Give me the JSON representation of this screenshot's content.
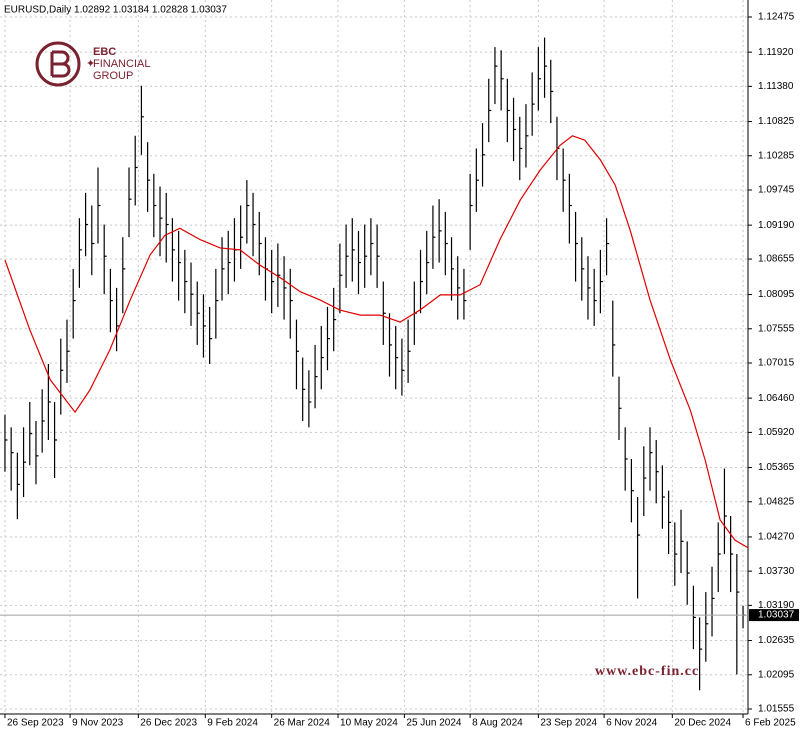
{
  "chart_data": {
    "type": "ohlc",
    "title": "EURUSD,Daily  1.02892 1.03184 1.02828 1.03037",
    "color": "#000000",
    "xlim": [
      -0.8,
      119.8
    ],
    "ylim": [
      1.01476,
      1.12743
    ],
    "grid": true,
    "xticks": [
      {
        "value": 0,
        "label": "26 Sep 2023"
      },
      {
        "value": 10.5,
        "label": "9 Nov 2023"
      },
      {
        "value": 21.5,
        "label": "26 Dec 2023"
      },
      {
        "value": 32.3,
        "label": "9 Feb 2024"
      },
      {
        "value": 43,
        "label": "26 Mar 2024"
      },
      {
        "value": 53.7,
        "label": "10 May 2024"
      },
      {
        "value": 64.4,
        "label": "25 Jun 2024"
      },
      {
        "value": 75,
        "label": "8 Aug 2024"
      },
      {
        "value": 86,
        "label": "23 Sep 2024"
      },
      {
        "value": 96.6,
        "label": "6 Nov 2024"
      },
      {
        "value": 107.6,
        "label": "20 Dec 2024"
      },
      {
        "value": 119,
        "label": "6 Feb 2025"
      }
    ],
    "yticks": [
      1.12475,
      {
        "value": 1.1192,
        "label": "1.11920"
      },
      {
        "value": 1.1138,
        "label": "1.11380"
      },
      1.10825,
      1.10285,
      1.09745,
      {
        "value": 1.0919,
        "label": "1.09190"
      },
      1.08655,
      1.08095,
      1.07555,
      1.07015,
      {
        "value": 1.0646,
        "label": "1.06460"
      },
      {
        "value": 1.0592,
        "label": "1.05920"
      },
      1.05365,
      1.04825,
      {
        "value": 1.0427,
        "label": "1.04270"
      },
      {
        "value": 1.0373,
        "label": "1.03730"
      },
      {
        "value": 1.0319,
        "label": "1.03190"
      },
      1.02635,
      1.02095,
      1.01555
    ],
    "high": [
      1.062,
      1.06,
      1.056,
      1.06,
      1.064,
      1.061,
      1.066,
      1.07,
      1.064,
      1.074,
      1.077,
      1.085,
      1.093,
      1.097,
      1.095,
      1.101,
      1.092,
      1.085,
      1.082,
      1.09,
      1.101,
      1.106,
      1.1139,
      1.105,
      1.1,
      1.098,
      1.097,
      1.093,
      1.091,
      1.088,
      1.086,
      1.083,
      1.081,
      1.079,
      1.085,
      1.09,
      1.091,
      1.093,
      1.095,
      1.099,
      1.097,
      1.094,
      1.09,
      1.088,
      1.089,
      1.087,
      1.085,
      1.077,
      1.071,
      1.069,
      1.073,
      1.076,
      1.079,
      1.082,
      1.089,
      1.092,
      1.093,
      1.091,
      1.092,
      1.093,
      1.092,
      1.083,
      1.078,
      1.076,
      1.074,
      1.077,
      1.083,
      1.088,
      1.091,
      1.095,
      1.096,
      1.094,
      1.09,
      1.087,
      1.085,
      1.1,
      1.104,
      1.108,
      1.115,
      1.12,
      1.1195,
      1.115,
      1.112,
      1.109,
      1.111,
      1.116,
      1.12,
      1.1215,
      1.118,
      1.109,
      1.104,
      1.1,
      1.094,
      1.09,
      1.087,
      1.085,
      1.088,
      1.093,
      1.08,
      1.068,
      1.06,
      1.055,
      1.049,
      1.057,
      1.06,
      1.058,
      1.054,
      1.05,
      1.045,
      1.047,
      1.042,
      1.035,
      1.03,
      1.034,
      1.038,
      1.045,
      1.0535,
      1.046,
      1.04,
      1.03184
    ],
    "low": [
      1.053,
      1.05,
      1.0455,
      1.049,
      1.054,
      1.051,
      1.056,
      1.058,
      1.052,
      1.062,
      1.067,
      1.074,
      1.082,
      1.087,
      1.084,
      1.089,
      1.081,
      1.075,
      1.072,
      1.078,
      1.09,
      1.095,
      1.103,
      1.094,
      1.09,
      1.087,
      1.086,
      1.083,
      1.08,
      1.078,
      1.076,
      1.073,
      1.071,
      1.07,
      1.074,
      1.08,
      1.081,
      1.083,
      1.085,
      1.089,
      1.087,
      1.084,
      1.08,
      1.078,
      1.079,
      1.077,
      1.074,
      1.066,
      1.061,
      1.06,
      1.063,
      1.066,
      1.069,
      1.072,
      1.078,
      1.082,
      1.083,
      1.081,
      1.082,
      1.084,
      1.082,
      1.073,
      1.068,
      1.066,
      1.065,
      1.067,
      1.073,
      1.078,
      1.081,
      1.085,
      1.086,
      1.084,
      1.08,
      1.077,
      1.077,
      1.088,
      1.094,
      1.098,
      1.105,
      1.111,
      1.11,
      1.105,
      1.102,
      1.099,
      1.101,
      1.106,
      1.11,
      1.112,
      1.108,
      1.099,
      1.094,
      1.089,
      1.083,
      1.08,
      1.077,
      1.076,
      1.078,
      1.084,
      1.068,
      1.058,
      1.05,
      1.045,
      1.033,
      1.046,
      1.05,
      1.048,
      1.044,
      1.04,
      1.035,
      1.037,
      1.032,
      1.025,
      1.0185,
      1.023,
      1.027,
      1.034,
      1.04,
      1.034,
      1.021,
      1.02828
    ],
    "close": [
      1.058,
      1.056,
      1.051,
      1.0545,
      1.059,
      1.0555,
      1.061,
      1.064,
      1.058,
      1.069,
      1.072,
      1.08,
      1.088,
      1.092,
      1.089,
      1.095,
      1.087,
      1.08,
      1.076,
      1.085,
      1.096,
      1.101,
      1.109,
      1.099,
      1.095,
      1.093,
      1.092,
      1.088,
      1.086,
      1.083,
      1.081,
      1.078,
      1.076,
      1.074,
      1.08,
      1.085,
      1.086,
      1.088,
      1.09,
      1.095,
      1.092,
      1.089,
      1.085,
      1.083,
      1.084,
      1.082,
      1.08,
      1.072,
      1.066,
      1.064,
      1.068,
      1.071,
      1.074,
      1.077,
      1.084,
      1.087,
      1.088,
      1.086,
      1.087,
      1.089,
      1.087,
      1.078,
      1.073,
      1.071,
      1.069,
      1.072,
      1.078,
      1.083,
      1.086,
      1.09,
      1.091,
      1.089,
      1.085,
      1.082,
      1.08,
      1.095,
      1.099,
      1.103,
      1.11,
      1.117,
      1.115,
      1.11,
      1.107,
      1.104,
      1.106,
      1.111,
      1.115,
      1.117,
      1.113,
      1.104,
      1.099,
      1.095,
      1.089,
      1.085,
      1.082,
      1.08,
      1.083,
      1.089,
      1.073,
      1.063,
      1.055,
      1.05,
      1.043,
      1.052,
      1.056,
      1.053,
      1.049,
      1.045,
      1.04,
      1.042,
      1.037,
      1.03,
      1.025,
      1.029,
      1.033,
      1.04,
      1.046,
      1.04,
      1.034,
      1.03037
    ],
    "ma": {
      "color": "#e00000",
      "x": [
        0,
        4,
        7.3,
        11.3,
        13.7,
        16.9,
        20.2,
        23.4,
        25.8,
        28.2,
        31.5,
        34.7,
        37.9,
        41.1,
        44.4,
        47.6,
        50.8,
        54,
        57.3,
        60.5,
        63.7,
        66.9,
        70.2,
        73.4,
        76.6,
        79.8,
        83.1,
        86.3,
        89.5,
        91.5,
        93.5,
        96,
        98.4,
        100.8,
        104,
        107.3,
        110.5,
        112.9,
        115.3,
        117.7,
        119.8
      ],
      "values": [
        1.0864,
        1.0754,
        1.0675,
        1.0624,
        1.0659,
        1.0722,
        1.0801,
        1.0872,
        1.0903,
        1.0914,
        1.0896,
        1.0883,
        1.088,
        1.0856,
        1.0836,
        1.0814,
        1.0801,
        1.0785,
        1.0777,
        1.0777,
        1.0766,
        1.0785,
        1.0809,
        1.0809,
        1.0825,
        1.0896,
        1.0959,
        1.1006,
        1.1045,
        1.106,
        1.1053,
        1.1022,
        1.0982,
        1.0911,
        1.0801,
        1.0706,
        1.0627,
        1.0548,
        1.0454,
        1.0422,
        1.041
      ]
    }
  },
  "branding": {
    "logo_lines": [
      "EBC",
      "FINANCIAL",
      "GROUP"
    ],
    "watermark": "www.ebc-fin.cc"
  }
}
